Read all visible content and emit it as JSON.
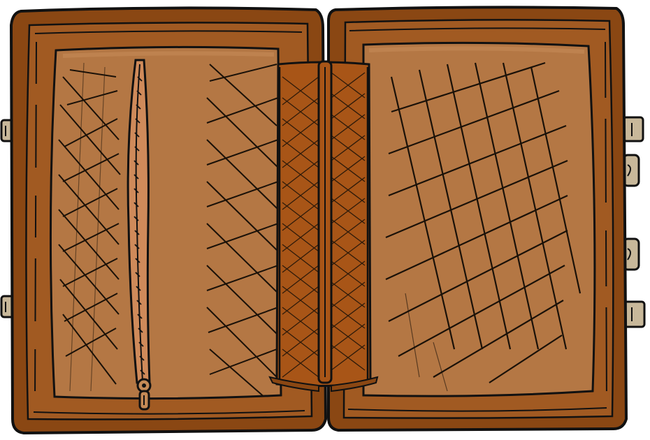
{
  "illustration": {
    "subject": "open-briefcase",
    "colors": {
      "outline": "#111111",
      "shell_dark": "#8a4713",
      "shell_mid": "#a15a22",
      "lining": "#b47744",
      "lining_light": "#c58a56",
      "spine": "#a85517",
      "zipper_tape": "#cf8a5a",
      "clasp": "#c8b89a",
      "hatch": "#1a1108"
    },
    "icons": {
      "zipper_pull": "zipper-pull-icon",
      "hinge_clasp": "hinge-clasp-icon"
    }
  }
}
